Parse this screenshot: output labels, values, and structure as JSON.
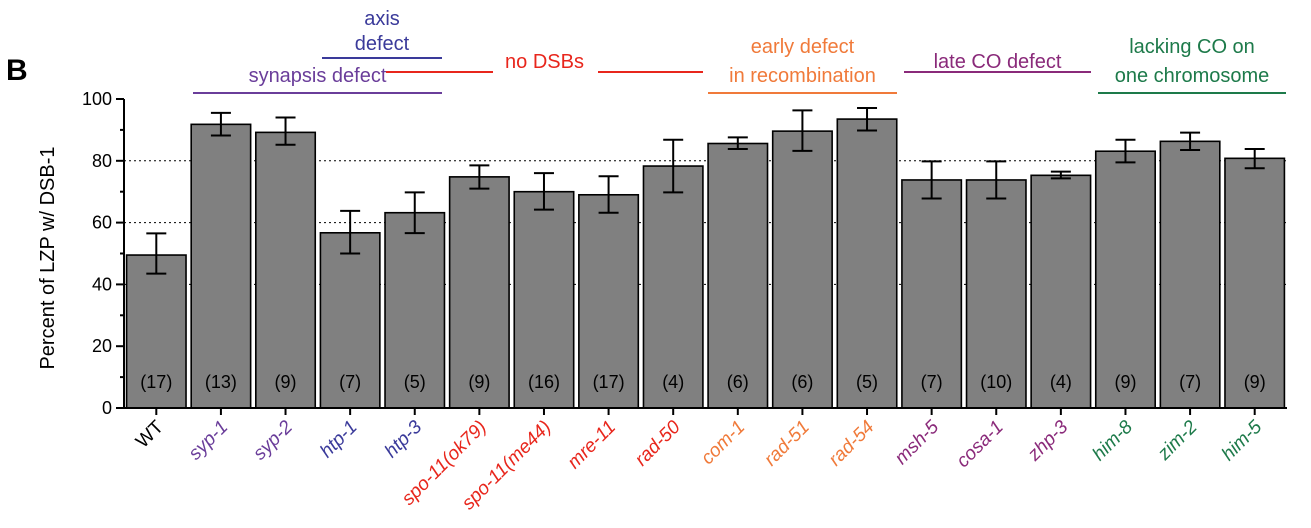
{
  "panel_letter": "B",
  "chart_data": {
    "type": "bar",
    "title": "",
    "ylabel": "Percent of LZP w/ DSB-1",
    "xlabel": "",
    "ylim": [
      0,
      100
    ],
    "yticks": [
      0,
      20,
      40,
      60,
      80,
      100
    ],
    "grid": "horizontal dotted at 40, 60, 80",
    "categories": [
      "WT",
      "syp-1",
      "syp-2",
      "htp-1",
      "htp-3",
      "spo-11(ok79)",
      "spo-11(me44)",
      "mre-11",
      "rad-50",
      "com-1",
      "rad-51",
      "rad-54",
      "msh-5",
      "cosa-1",
      "zhp-3",
      "him-8",
      "zim-2",
      "him-5"
    ],
    "italic_categories": [
      "syp-1",
      "syp-2",
      "htp-1",
      "htp-3",
      "spo-11(ok79)",
      "spo-11(me44)",
      "mre-11",
      "rad-50",
      "com-1",
      "rad-51",
      "rad-54",
      "msh-5",
      "cosa-1",
      "zhp-3",
      "him-8",
      "zim-2",
      "him-5"
    ],
    "category_colors": [
      "#000000",
      "#6a3d9a",
      "#6a3d9a",
      "#3a3a9a",
      "#3a3a9a",
      "#e8261c",
      "#e8261c",
      "#e8261c",
      "#e8261c",
      "#f07a3a",
      "#f07a3a",
      "#f07a3a",
      "#8a2a7a",
      "#8a2a7a",
      "#8a2a7a",
      "#1d7a4a",
      "#1d7a4a",
      "#1d7a4a"
    ],
    "values": [
      49.5,
      91.8,
      89.2,
      56.7,
      63.2,
      74.8,
      70.0,
      69.0,
      78.3,
      85.6,
      89.6,
      93.5,
      73.8,
      73.8,
      75.3,
      83.1,
      86.3,
      80.8
    ],
    "error_high": [
      56.5,
      95.5,
      94.0,
      63.8,
      69.8,
      78.5,
      76.0,
      75.0,
      86.8,
      87.6,
      96.3,
      97.1,
      79.8,
      79.8,
      76.5,
      86.8,
      89.1,
      83.8
    ],
    "error_low": [
      43.5,
      88.2,
      85.2,
      50.0,
      56.6,
      71.0,
      64.2,
      63.2,
      69.8,
      83.8,
      83.2,
      89.8,
      67.8,
      67.8,
      74.3,
      79.5,
      83.5,
      77.6
    ],
    "n_labels": [
      "(17)",
      "(13)",
      "(9)",
      "(7)",
      "(5)",
      "(9)",
      "(16)",
      "(17)",
      "(4)",
      "(6)",
      "(6)",
      "(5)",
      "(7)",
      "(10)",
      "(4)",
      "(9)",
      "(7)",
      "(9)"
    ],
    "bar_color": "#808080",
    "group_annotations": [
      {
        "lines": [
          "synapsis defect"
        ],
        "color": "#6a3d9a",
        "from": 1,
        "to": 4
      },
      {
        "lines": [
          "axis",
          "defect"
        ],
        "color": "#3a3a9a",
        "from": 3,
        "to": 4
      },
      {
        "lines": [
          "no DSBs"
        ],
        "color": "#e8261c",
        "from": 5,
        "to": 8
      },
      {
        "lines": [
          "early defect",
          "in recombination"
        ],
        "color": "#f07a3a",
        "from": 9,
        "to": 11
      },
      {
        "lines": [
          "late CO defect"
        ],
        "color": "#8a2a7a",
        "from": 12,
        "to": 14
      },
      {
        "lines": [
          "lacking CO on",
          "one chromosome"
        ],
        "color": "#1d7a4a",
        "from": 15,
        "to": 17
      }
    ]
  }
}
